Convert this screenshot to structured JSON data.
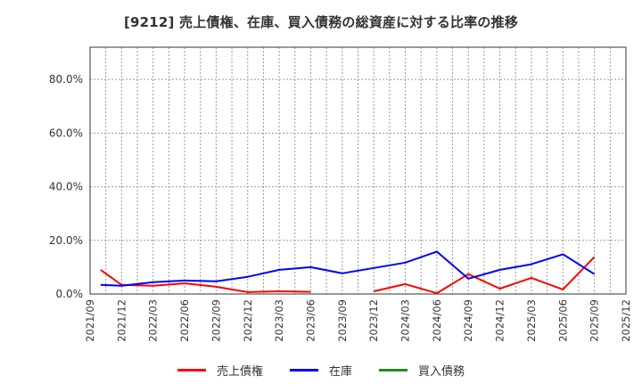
{
  "title": "[9212]  売上債権、在庫、買入債務の総資産に対する比率の推移",
  "chart_data": {
    "type": "line",
    "title": "[9212]  売上債権、在庫、買入債務の総資産に対する比率の推移",
    "xlabel": "",
    "ylabel": "",
    "ylim": [
      0,
      92
    ],
    "y_ticks": [
      "0.0%",
      "20.0%",
      "40.0%",
      "60.0%",
      "80.0%"
    ],
    "x_ticks": [
      "2021/09",
      "2021/12",
      "2022/03",
      "2022/06",
      "2022/09",
      "2022/12",
      "2023/03",
      "2023/06",
      "2023/09",
      "2023/12",
      "2024/03",
      "2024/06",
      "2024/09",
      "2024/12",
      "2025/03",
      "2025/06",
      "2025/09",
      "2025/12"
    ],
    "grid": true,
    "legend_position": "bottom",
    "x": [
      "2021/10",
      "2021/12",
      "2022/03",
      "2022/06",
      "2022/09",
      "2022/12",
      "2023/03",
      "2023/06",
      "2023/09",
      "2023/12",
      "2024/03",
      "2024/06",
      "2024/09",
      "2024/12",
      "2025/03",
      "2025/06",
      "2025/09"
    ],
    "series": [
      {
        "name": "売上債権",
        "color": "#ff0000",
        "values": [
          9.0,
          3.4,
          3.1,
          4.0,
          2.7,
          0.7,
          1.0,
          0.8,
          null,
          1.0,
          3.7,
          0.3,
          7.4,
          2.0,
          6.0,
          1.7,
          13.8
        ]
      },
      {
        "name": "在庫",
        "color": "#0000ff",
        "values": [
          3.4,
          3.1,
          4.4,
          5.0,
          4.7,
          6.4,
          9.0,
          10.0,
          7.7,
          9.7,
          11.7,
          15.8,
          5.7,
          9.0,
          11.1,
          14.8,
          7.4
        ]
      },
      {
        "name": "買入債務",
        "color": "#228b22",
        "values": []
      }
    ]
  },
  "legend": [
    {
      "label": "売上債権",
      "color": "#ff0000"
    },
    {
      "label": "在庫",
      "color": "#0000ff"
    },
    {
      "label": "買入債務",
      "color": "#228b22"
    }
  ]
}
